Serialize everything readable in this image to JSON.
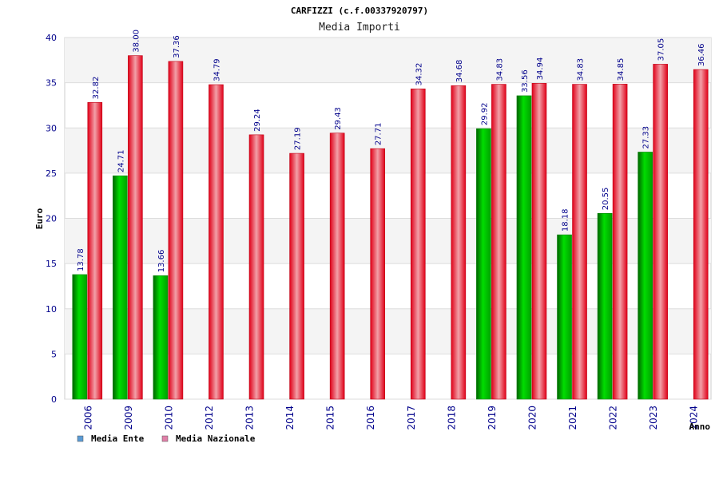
{
  "chart_data": {
    "type": "bar",
    "title": "CARFIZZI (c.f.00337920797)",
    "subtitle": "Media Importi",
    "ylabel": "Euro",
    "xlabel": "Anno",
    "ylim": [
      0,
      40
    ],
    "yticks": [
      0,
      5,
      10,
      15,
      20,
      25,
      30,
      35,
      40
    ],
    "grid": true,
    "legend_position": "bottom-left",
    "categories": [
      "2006",
      "2009",
      "2010",
      "2012",
      "2013",
      "2014",
      "2015",
      "2016",
      "2017",
      "2018",
      "2019",
      "2020",
      "2021",
      "2022",
      "2023",
      "2024"
    ],
    "series": [
      {
        "name": "Media Ente",
        "color": "#00b000",
        "legend_color": "#5b9bd5",
        "values": [
          13.78,
          24.71,
          13.66,
          null,
          null,
          null,
          null,
          null,
          null,
          null,
          29.92,
          33.56,
          18.18,
          20.55,
          27.33,
          null
        ],
        "labels": [
          "13.78",
          "24.71",
          "13.66",
          null,
          null,
          null,
          null,
          null,
          null,
          null,
          "29.92",
          "33.56",
          "18.18",
          "20.55",
          "27.33",
          null
        ]
      },
      {
        "name": "Media Nazionale",
        "color": "#e8001c",
        "legend_color": "#e07fa8",
        "values": [
          32.82,
          38.0,
          37.36,
          34.79,
          29.24,
          27.19,
          29.43,
          27.71,
          34.32,
          34.68,
          34.83,
          34.94,
          34.83,
          34.85,
          37.05,
          36.46
        ],
        "labels": [
          "32.82",
          "38.00",
          "37.36",
          "34.79",
          "29.24",
          "27.19",
          "29.43",
          "27.71",
          "34.32",
          "34.68",
          "34.83",
          "34.94",
          "34.83",
          "34.85",
          "37.05",
          "36.46"
        ]
      }
    ]
  }
}
